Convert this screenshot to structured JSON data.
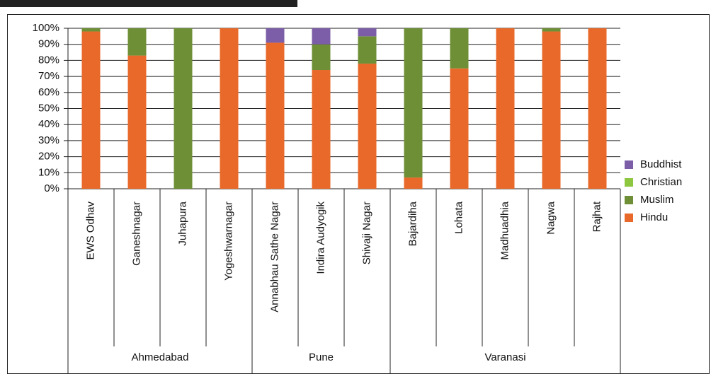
{
  "chart_data": {
    "type": "stacked_bar",
    "categories": [
      "EWS Odhav",
      "Ganeshnagar",
      "Juhapura",
      "Yogeshwarnagar",
      "Annabhau Sathe Nagar",
      "Indira Audyogik",
      "Shivaji Nagar",
      "Bajardiha",
      "Lohata",
      "Madhuadhia",
      "Nagwa",
      "Rajhat"
    ],
    "groups": [
      {
        "label": "Ahmedabad",
        "span": 4
      },
      {
        "label": "Pune",
        "span": 3
      },
      {
        "label": "Varanasi",
        "span": 5
      }
    ],
    "series": [
      {
        "name": "Hindu",
        "color": "#e8692a",
        "values": [
          98,
          83,
          0,
          100,
          91,
          74,
          78,
          7,
          75,
          100,
          98,
          100
        ]
      },
      {
        "name": "Muslim",
        "color": "#6e8f35",
        "values": [
          2,
          17,
          100,
          0,
          0,
          16,
          17,
          93,
          25,
          0,
          2,
          0
        ]
      },
      {
        "name": "Christian",
        "color": "#8dc63f",
        "values": [
          0,
          0,
          0,
          0,
          0,
          0,
          0,
          0,
          0,
          0,
          0,
          0
        ]
      },
      {
        "name": "Buddhist",
        "color": "#7b5ea7",
        "values": [
          0,
          0,
          0,
          0,
          9,
          10,
          5,
          0,
          0,
          0,
          0,
          0
        ]
      }
    ],
    "ylim": [
      0,
      100
    ],
    "yticks": [
      {
        "value": 0,
        "label": "0%"
      },
      {
        "value": 10,
        "label": "10%"
      },
      {
        "value": 20,
        "label": "20%"
      },
      {
        "value": 30,
        "label": "30%"
      },
      {
        "value": 40,
        "label": "40%"
      },
      {
        "value": 50,
        "label": "50%"
      },
      {
        "value": 60,
        "label": "60%"
      },
      {
        "value": 70,
        "label": "70%"
      },
      {
        "value": 80,
        "label": "80%"
      },
      {
        "value": 90,
        "label": "90%"
      },
      {
        "value": 100,
        "label": "100%"
      }
    ],
    "grid": true,
    "legend": "right"
  }
}
